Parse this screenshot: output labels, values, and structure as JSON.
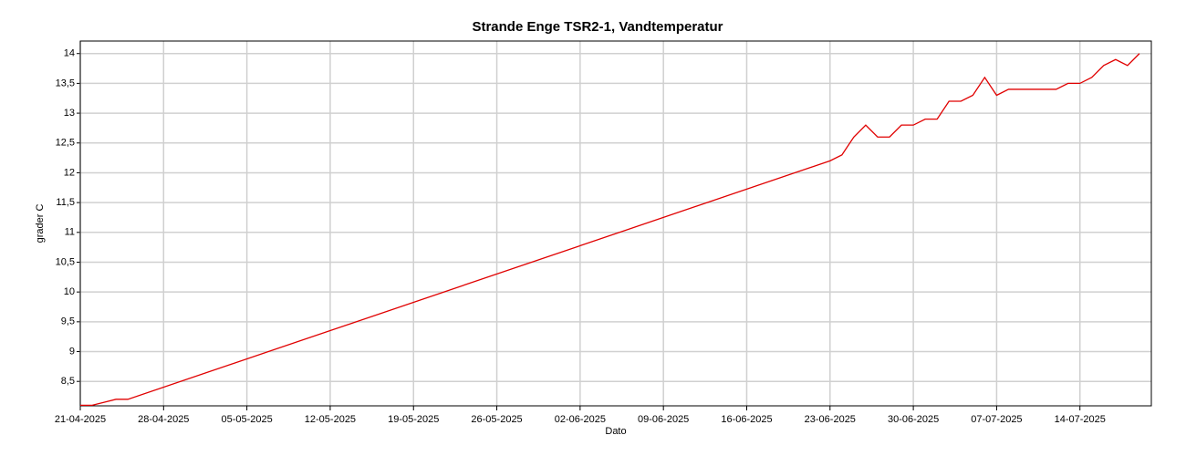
{
  "chart_data": {
    "type": "line",
    "title": "Strande Enge TSR2-1, Vandtemperatur",
    "xlabel": "Dato",
    "ylabel": "grader C",
    "color": "#e00000",
    "grid": true,
    "x": [
      "2025-04-21",
      "2025-04-22",
      "2025-04-23",
      "2025-04-24",
      "2025-04-25",
      "2025-06-23",
      "2025-06-24",
      "2025-06-25",
      "2025-06-26",
      "2025-06-27",
      "2025-06-28",
      "2025-06-29",
      "2025-06-30",
      "2025-07-01",
      "2025-07-02",
      "2025-07-03",
      "2025-07-04",
      "2025-07-05",
      "2025-07-06",
      "2025-07-07",
      "2025-07-08",
      "2025-07-09",
      "2025-07-10",
      "2025-07-11",
      "2025-07-12",
      "2025-07-13",
      "2025-07-14",
      "2025-07-15",
      "2025-07-16",
      "2025-07-17",
      "2025-07-18",
      "2025-07-19"
    ],
    "values": [
      8.1,
      8.1,
      8.15,
      8.2,
      8.2,
      12.2,
      12.3,
      12.6,
      12.8,
      12.6,
      12.6,
      12.8,
      12.8,
      12.9,
      12.9,
      13.2,
      13.2,
      13.3,
      13.6,
      13.3,
      13.4,
      13.4,
      13.4,
      13.4,
      13.4,
      13.5,
      13.5,
      13.6,
      13.8,
      13.9,
      13.8,
      14.0
    ],
    "xlim": [
      "2025-04-21",
      "2025-07-20"
    ],
    "xticks": [
      {
        "value": "2025-04-21",
        "label": "21-04-2025"
      },
      {
        "value": "2025-04-28",
        "label": "28-04-2025"
      },
      {
        "value": "2025-05-05",
        "label": "05-05-2025"
      },
      {
        "value": "2025-05-12",
        "label": "12-05-2025"
      },
      {
        "value": "2025-05-19",
        "label": "19-05-2025"
      },
      {
        "value": "2025-05-26",
        "label": "26-05-2025"
      },
      {
        "value": "2025-06-02",
        "label": "02-06-2025"
      },
      {
        "value": "2025-06-09",
        "label": "09-06-2025"
      },
      {
        "value": "2025-06-16",
        "label": "16-06-2025"
      },
      {
        "value": "2025-06-23",
        "label": "23-06-2025"
      },
      {
        "value": "2025-06-30",
        "label": "30-06-2025"
      },
      {
        "value": "2025-07-07",
        "label": "07-07-2025"
      },
      {
        "value": "2025-07-14",
        "label": "14-07-2025"
      }
    ],
    "ylim": [
      8.09,
      14.21
    ],
    "yticks": [
      {
        "value": 8.5,
        "label": "8,5"
      },
      9,
      {
        "value": 9.5,
        "label": "9,5"
      },
      10,
      {
        "value": 10.5,
        "label": "10,5"
      },
      11,
      {
        "value": 11.5,
        "label": "11,5"
      },
      12,
      {
        "value": 12.5,
        "label": "12,5"
      },
      13,
      {
        "value": 13.5,
        "label": "13,5"
      },
      14
    ]
  }
}
